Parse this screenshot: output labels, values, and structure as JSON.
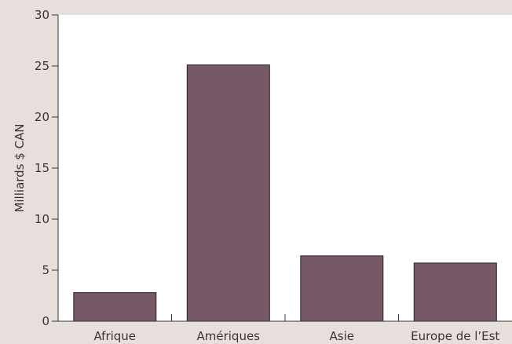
{
  "chart_data": {
    "type": "bar",
    "categories": [
      "Afrique",
      "Amériques",
      "Asie",
      "Europe de l’Est"
    ],
    "values": [
      2.8,
      25.1,
      6.4,
      5.7
    ],
    "ylabel": "Milliards $ CAN",
    "xlabel": "",
    "ylim": [
      0,
      30
    ],
    "yticks": [
      0,
      5,
      10,
      15,
      20,
      25,
      30
    ],
    "grid": false,
    "colors": {
      "bar": "#765866",
      "plot_background": "#ffffff",
      "page_background": "#e6dfdc",
      "axis": "#3a3438"
    }
  }
}
